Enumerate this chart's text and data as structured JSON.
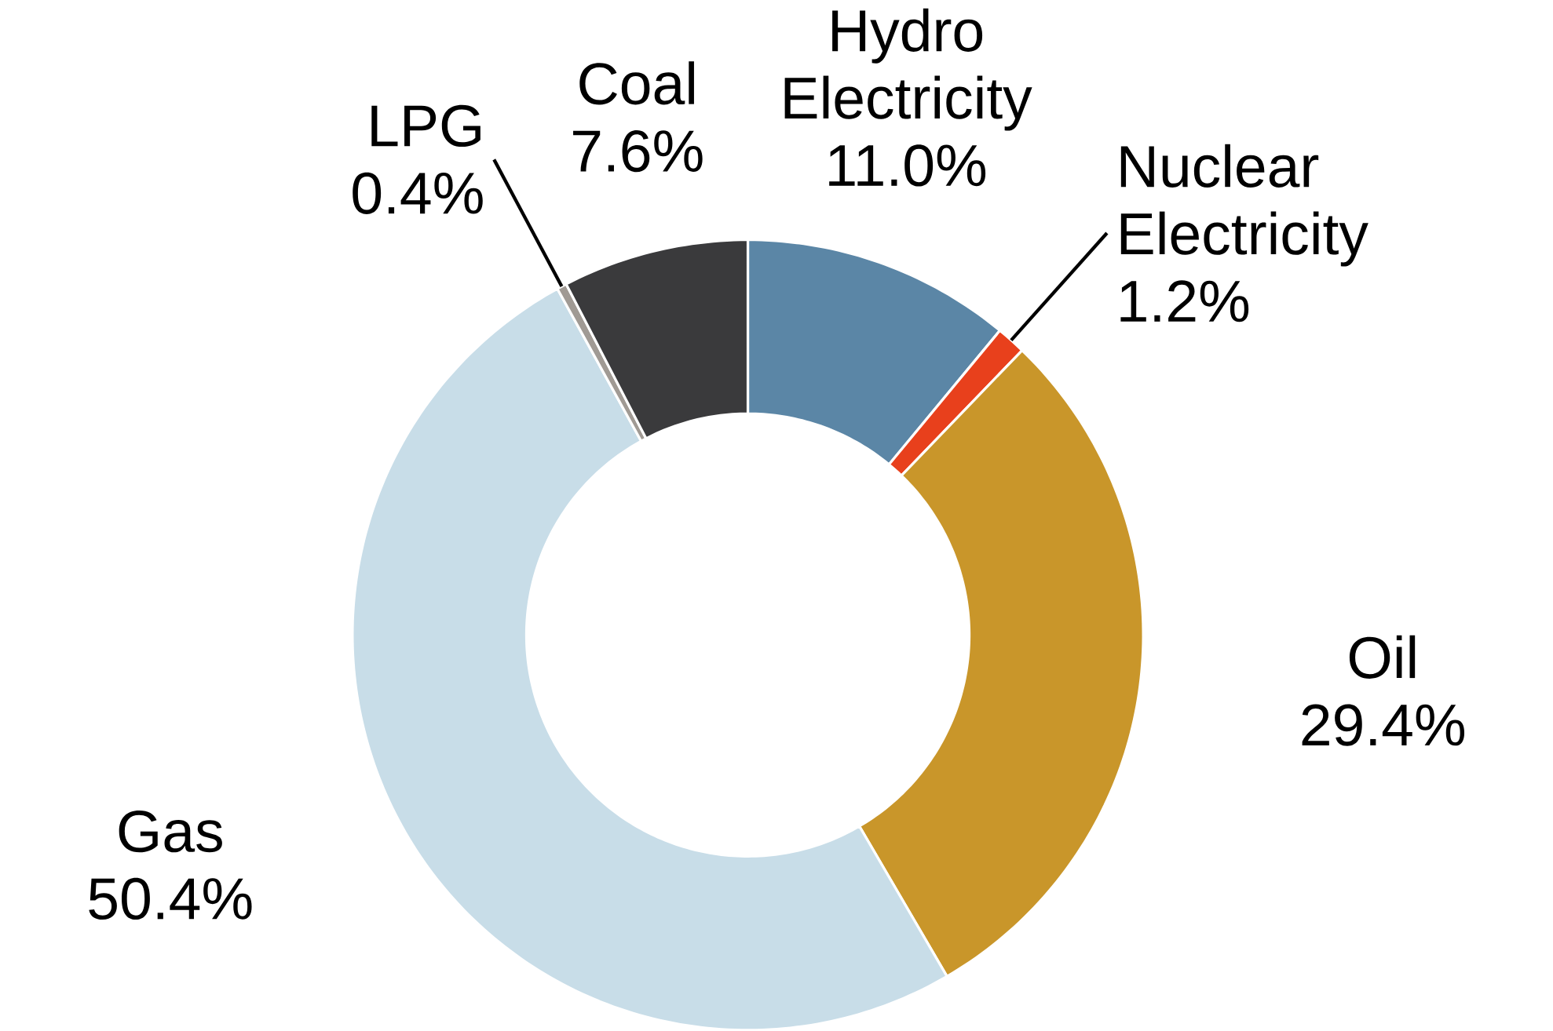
{
  "chart_data": {
    "type": "donut",
    "categories": [
      "Hydro Electricity",
      "Nuclear Electricity",
      "Oil",
      "Gas",
      "LPG",
      "Coal"
    ],
    "values": [
      11.0,
      1.2,
      29.4,
      50.4,
      0.4,
      7.6
    ],
    "value_labels": [
      "11.0%",
      "1.2%",
      "29.4%",
      "50.4%",
      "0.4%",
      "7.6%"
    ],
    "colors": [
      "#5b86a6",
      "#e8401c",
      "#c9962a",
      "#c8dde8",
      "#a09a94",
      "#3a3a3c"
    ]
  }
}
